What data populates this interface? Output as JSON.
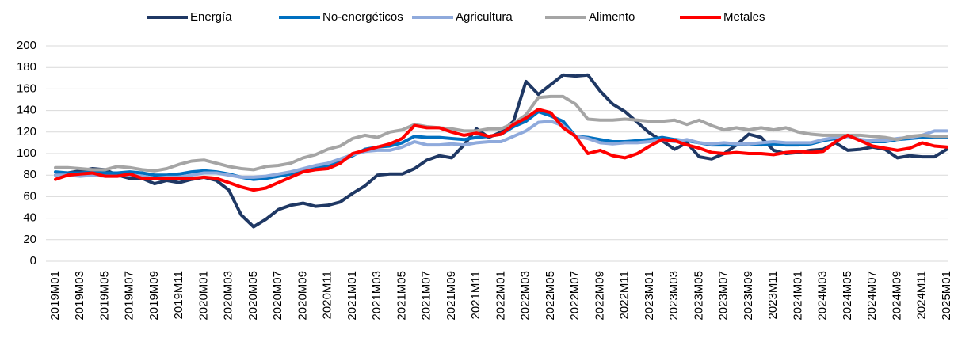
{
  "chart_data": {
    "type": "line",
    "categories": [
      "2019M01",
      null,
      "2019M03",
      null,
      "2019M05",
      null,
      "2019M07",
      null,
      "2019M09",
      null,
      "2019M11",
      null,
      "2020M01",
      null,
      "2020M03",
      null,
      "2020M05",
      null,
      "2020M07",
      null,
      "2020M09",
      null,
      "2020M11",
      null,
      "2021M01",
      null,
      "2021M03",
      null,
      "2021M05",
      null,
      "2021M07",
      null,
      "2021M09",
      null,
      "2021M11",
      null,
      "2022M01",
      null,
      "2022M03",
      null,
      "2022M05",
      null,
      "2022M07",
      null,
      "2022M09",
      null,
      "2022M11",
      null,
      "2023M01",
      null,
      "2023M03",
      null,
      "2023M05",
      null,
      "2023M07",
      null,
      "2023M09",
      null,
      "2023M11",
      null,
      "2024M01",
      null,
      "2024M03",
      null,
      "2024M05",
      null,
      "2024M07",
      null,
      "2024M09",
      null,
      "2024M11",
      null,
      "2025M01"
    ],
    "series": [
      {
        "name": "Energía",
        "color": "#1f3864",
        "values": [
          80,
          82,
          84,
          86,
          85,
          80,
          77,
          77,
          72,
          75,
          73,
          76,
          78,
          75,
          66,
          43,
          32,
          39,
          48,
          52,
          54,
          51,
          52,
          55,
          63,
          70,
          80,
          81,
          81,
          86,
          94,
          98,
          96,
          108,
          123,
          115,
          120,
          130,
          167,
          155,
          164,
          173,
          172,
          173,
          158,
          146,
          139,
          129,
          119,
          112,
          104,
          110,
          97,
          95,
          100,
          108,
          118,
          115,
          103,
          100,
          101,
          103,
          104,
          110,
          103,
          104,
          106,
          104,
          96,
          98,
          97,
          97,
          104
        ]
      },
      {
        "name": "No-energéticos",
        "color": "#0070c0",
        "values": [
          83,
          82,
          82,
          83,
          82,
          82,
          83,
          82,
          80,
          80,
          81,
          83,
          84,
          83,
          81,
          78,
          76,
          77,
          79,
          81,
          84,
          87,
          89,
          93,
          98,
          104,
          106,
          107,
          110,
          116,
          115,
          115,
          114,
          113,
          115,
          116,
          118,
          125,
          130,
          139,
          135,
          130,
          116,
          115,
          113,
          111,
          111,
          112,
          113,
          115,
          113,
          112,
          110,
          108,
          108,
          108,
          109,
          108,
          109,
          108,
          108,
          109,
          112,
          114,
          116,
          113,
          111,
          111,
          113,
          114,
          115,
          115,
          115
        ]
      },
      {
        "name": "Agricultura",
        "color": "#8faadc",
        "values": [
          80,
          80,
          79,
          80,
          79,
          79,
          80,
          79,
          77,
          78,
          78,
          80,
          82,
          82,
          80,
          78,
          78,
          79,
          81,
          83,
          86,
          89,
          91,
          95,
          99,
          102,
          103,
          103,
          106,
          111,
          108,
          108,
          109,
          108,
          110,
          111,
          111,
          116,
          121,
          129,
          130,
          126,
          116,
          114,
          110,
          109,
          110,
          110,
          111,
          113,
          111,
          113,
          110,
          109,
          110,
          109,
          109,
          110,
          111,
          110,
          110,
          110,
          113,
          115,
          116,
          113,
          112,
          112,
          114,
          115,
          117,
          121,
          121
        ]
      },
      {
        "name": "Alimento",
        "color": "#a5a5a5",
        "values": [
          87,
          87,
          86,
          85,
          85,
          88,
          87,
          85,
          84,
          86,
          90,
          93,
          94,
          91,
          88,
          86,
          85,
          88,
          89,
          91,
          96,
          99,
          104,
          107,
          114,
          117,
          115,
          120,
          122,
          127,
          125,
          124,
          123,
          121,
          121,
          123,
          123,
          128,
          136,
          152,
          153,
          153,
          146,
          132,
          131,
          131,
          132,
          131,
          130,
          130,
          131,
          127,
          131,
          126,
          122,
          124,
          122,
          124,
          122,
          124,
          120,
          118,
          117,
          117,
          117,
          117,
          116,
          115,
          113,
          116,
          117,
          116,
          116
        ]
      },
      {
        "name": "Metales",
        "color": "#ff0000",
        "values": [
          76,
          80,
          81,
          82,
          79,
          79,
          81,
          77,
          77,
          77,
          77,
          77,
          78,
          77,
          73,
          69,
          66,
          68,
          73,
          78,
          83,
          85,
          86,
          91,
          100,
          103,
          106,
          109,
          114,
          126,
          124,
          124,
          120,
          117,
          119,
          116,
          118,
          127,
          133,
          141,
          138,
          124,
          116,
          100,
          103,
          98,
          96,
          100,
          107,
          113,
          112,
          108,
          105,
          101,
          100,
          101,
          100,
          100,
          99,
          101,
          102,
          101,
          102,
          111,
          117,
          112,
          107,
          105,
          103,
          105,
          110,
          107,
          106
        ]
      }
    ],
    "ylim": [
      0,
      200
    ],
    "yticks": [
      0,
      20,
      40,
      60,
      80,
      100,
      120,
      140,
      160,
      180,
      200
    ],
    "grid": true,
    "legend": "top"
  }
}
